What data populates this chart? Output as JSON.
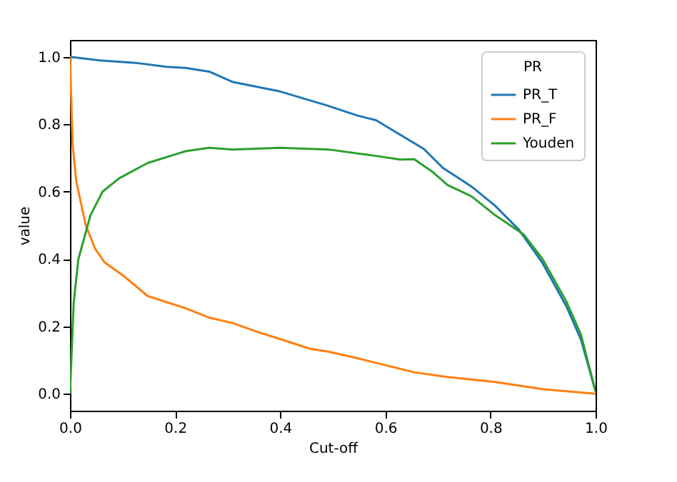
{
  "chart_data": {
    "type": "line",
    "xlabel": "Cut-off",
    "ylabel": "value",
    "legend_title": "PR",
    "legend": "top right",
    "grid": false,
    "xlim": [
      0,
      1
    ],
    "ylim": [
      -0.05,
      1.05
    ],
    "xticks": [
      {
        "value": 0,
        "label": "0.0"
      },
      0.2,
      0.4,
      0.6,
      0.8,
      {
        "value": 1,
        "label": "1.0"
      }
    ],
    "yticks": [
      {
        "value": 0,
        "label": "0.0"
      },
      0.2,
      0.4,
      0.6,
      0.8,
      {
        "value": 1,
        "label": "1.0"
      }
    ],
    "series": [
      {
        "name": "PR_T",
        "color": "#1f77b4",
        "x": [
          0,
          0.057,
          0.13,
          0.184,
          0.22,
          0.265,
          0.31,
          0.4,
          0.49,
          0.546,
          0.582,
          0.673,
          0.709,
          0.764,
          0.809,
          0.854,
          0.899,
          0.944,
          0.972,
          1.0
        ],
        "values": [
          1.0,
          0.989,
          0.981,
          0.97,
          0.967,
          0.956,
          0.925,
          0.897,
          0.855,
          0.826,
          0.812,
          0.727,
          0.671,
          0.615,
          0.558,
          0.487,
          0.388,
          0.261,
          0.162,
          0.007
        ]
      },
      {
        "name": "PR_F",
        "color": "#ff7f0e",
        "x": [
          0,
          0.005,
          0.012,
          0.03,
          0.048,
          0.066,
          0.102,
          0.148,
          0.22,
          0.265,
          0.31,
          0.356,
          0.401,
          0.456,
          0.492,
          0.546,
          0.582,
          0.655,
          0.718,
          0.809,
          0.899,
          1.0
        ],
        "values": [
          1.0,
          0.74,
          0.63,
          0.5,
          0.43,
          0.39,
          0.35,
          0.29,
          0.254,
          0.226,
          0.21,
          0.184,
          0.162,
          0.134,
          0.125,
          0.106,
          0.092,
          0.064,
          0.05,
          0.035,
          0.014,
          0.0
        ]
      },
      {
        "name": "Youden",
        "color": "#2ca02c",
        "x": [
          0,
          0.007,
          0.016,
          0.039,
          0.062,
          0.094,
          0.148,
          0.22,
          0.265,
          0.31,
          0.4,
          0.492,
          0.582,
          0.628,
          0.655,
          0.691,
          0.718,
          0.764,
          0.809,
          0.863,
          0.899,
          0.944,
          0.972,
          1.0
        ],
        "values": [
          0.0,
          0.27,
          0.4,
          0.53,
          0.6,
          0.64,
          0.685,
          0.72,
          0.73,
          0.725,
          0.73,
          0.725,
          0.706,
          0.695,
          0.696,
          0.657,
          0.62,
          0.586,
          0.53,
          0.473,
          0.4,
          0.275,
          0.176,
          0.007
        ]
      }
    ]
  }
}
